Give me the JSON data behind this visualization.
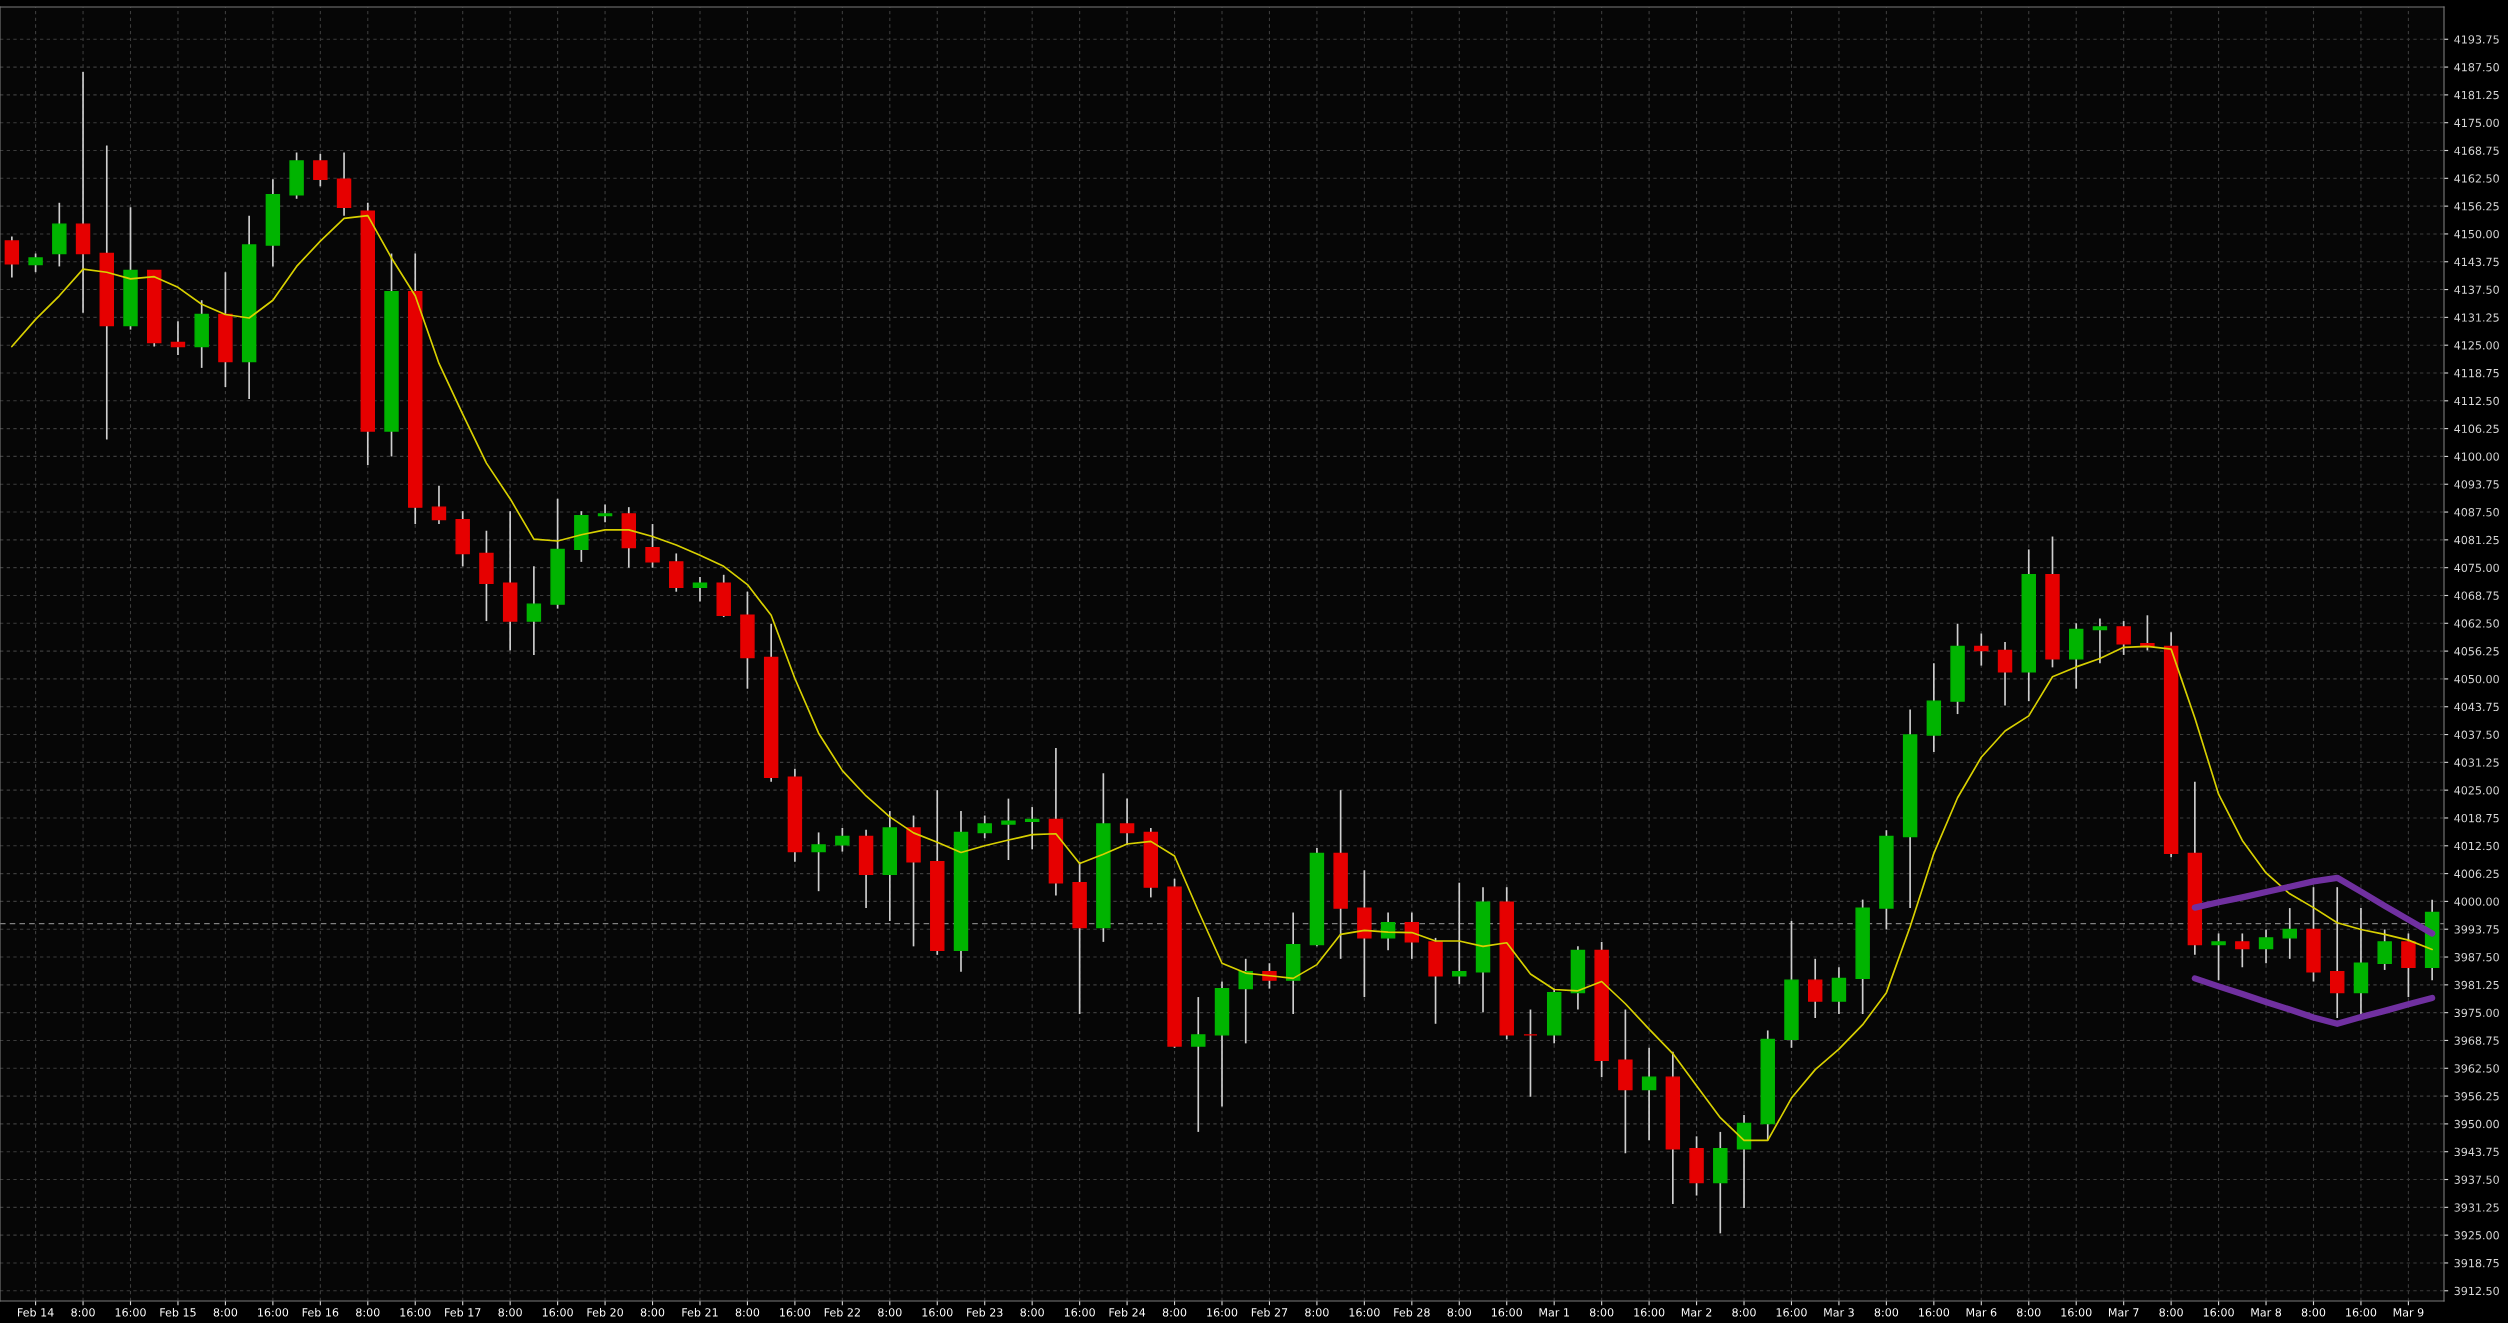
{
  "chart_data": {
    "type": "candlestick",
    "categories": [
      null,
      "Feb 14",
      null,
      "8:00",
      null,
      "16:00",
      null,
      "Feb 15",
      null,
      "8:00",
      null,
      "16:00",
      null,
      "Feb 16",
      null,
      "8:00",
      null,
      "16:00",
      null,
      "Feb 17",
      null,
      "8:00",
      null,
      "16:00",
      null,
      "Feb 20",
      null,
      "8:00",
      null,
      "Feb 21",
      null,
      "8:00",
      null,
      "16:00",
      null,
      "Feb 22",
      null,
      "8:00",
      null,
      "16:00",
      null,
      "Feb 23",
      null,
      "8:00",
      null,
      "16:00",
      null,
      "Feb 24",
      null,
      "8:00",
      null,
      "16:00",
      null,
      "Feb 27",
      null,
      "8:00",
      null,
      "16:00",
      null,
      "Feb 28",
      null,
      "8:00",
      null,
      "16:00",
      null,
      "Mar 1",
      null,
      "8:00",
      null,
      "16:00",
      null,
      "Mar 2",
      null,
      "8:00",
      null,
      "16:00",
      null,
      "Mar 3",
      null,
      "8:00",
      null,
      "16:00",
      null,
      "Mar 6",
      null,
      "8:00",
      null,
      "16:00",
      null,
      "Mar 7",
      null,
      "8:00",
      null,
      "16:00",
      null,
      "Mar 8",
      null,
      "8:00",
      null,
      "16:00",
      null,
      "Mar 9",
      null
    ],
    "ohlc": [
      [
        4148.4,
        4149.4,
        4140.2,
        4143.3
      ],
      [
        4143.1,
        4145.6,
        4141.4,
        4144.6
      ],
      [
        4145.6,
        4157.0,
        4142.7,
        4152.2
      ],
      [
        4152.2,
        4186.4,
        4132.3,
        4145.6
      ],
      [
        4145.6,
        4169.9,
        4103.8,
        4129.4
      ],
      [
        4129.4,
        4156.0,
        4128.5,
        4141.8
      ],
      [
        4141.8,
        4141.8,
        4124.7,
        4125.6
      ],
      [
        4125.6,
        4130.4,
        4122.8,
        4124.7
      ],
      [
        4124.7,
        4135.1,
        4119.9,
        4131.9
      ],
      [
        4131.9,
        4141.4,
        4115.6,
        4121.3
      ],
      [
        4121.3,
        4154.1,
        4112.9,
        4147.5
      ],
      [
        4147.5,
        4162.3,
        4142.7,
        4158.8
      ],
      [
        4158.8,
        4168.3,
        4157.9,
        4166.4
      ],
      [
        4166.4,
        4168.0,
        4160.7,
        4162.3
      ],
      [
        4162.3,
        4168.3,
        4154.1,
        4156.0
      ],
      [
        4155.1,
        4157.0,
        4098.1,
        4105.7
      ],
      [
        4105.7,
        4145.6,
        4100.0,
        4137.0
      ],
      [
        4137.0,
        4145.6,
        4084.8,
        4088.6
      ],
      [
        4088.6,
        4093.4,
        4084.8,
        4085.8
      ],
      [
        4085.8,
        4087.7,
        4075.3,
        4078.2
      ],
      [
        4078.2,
        4083.3,
        4063.0,
        4071.5
      ],
      [
        4071.5,
        4087.7,
        4056.4,
        4063.0
      ],
      [
        4063.0,
        4075.3,
        4055.4,
        4066.8
      ],
      [
        4066.8,
        4090.5,
        4065.8,
        4079.1
      ],
      [
        4079.1,
        4087.7,
        4076.3,
        4086.7
      ],
      [
        4086.7,
        4089.2,
        4085.2,
        4087.1
      ],
      [
        4087.1,
        4088.6,
        4075.0,
        4079.5
      ],
      [
        4079.5,
        4084.8,
        4075.0,
        4076.3
      ],
      [
        4076.3,
        4078.2,
        4069.6,
        4070.6
      ],
      [
        4070.6,
        4072.9,
        4067.4,
        4071.5
      ],
      [
        4071.5,
        4073.4,
        4063.9,
        4064.3
      ],
      [
        4064.3,
        4069.6,
        4047.8,
        4054.8
      ],
      [
        4054.8,
        4062.4,
        4026.9,
        4027.9
      ],
      [
        4027.9,
        4029.8,
        4008.9,
        4011.2
      ],
      [
        4011.2,
        4015.5,
        4002.3,
        4012.7
      ],
      [
        4012.7,
        4016.5,
        4011.2,
        4014.6
      ],
      [
        4014.6,
        4016.1,
        3998.5,
        4006.1
      ],
      [
        4006.1,
        4020.3,
        3995.6,
        4016.5
      ],
      [
        4016.5,
        4019.3,
        3989.9,
        4008.9
      ],
      [
        4008.9,
        4025.0,
        3988.0,
        3989.0
      ],
      [
        3989.0,
        4020.3,
        3984.2,
        4015.5
      ],
      [
        4015.5,
        4019.3,
        4014.2,
        4017.4
      ],
      [
        4017.4,
        4023.1,
        4009.3,
        4018.0
      ],
      [
        4018.0,
        4021.2,
        4011.7,
        4018.4
      ],
      [
        4018.4,
        4034.5,
        4001.3,
        4004.2
      ],
      [
        4004.2,
        4008.9,
        3974.7,
        3994.1
      ],
      [
        3994.1,
        4028.8,
        3990.9,
        4017.4
      ],
      [
        4017.4,
        4023.1,
        4012.7,
        4015.5
      ],
      [
        4015.5,
        4016.5,
        4000.9,
        4003.2
      ],
      [
        4003.2,
        4005.1,
        3967.1,
        3967.5
      ],
      [
        3967.5,
        3978.5,
        3948.2,
        3970.0
      ],
      [
        3970.0,
        3982.0,
        3953.9,
        3980.4
      ],
      [
        3980.4,
        3987.1,
        3968.1,
        3984.2
      ],
      [
        3984.2,
        3986.1,
        3980.4,
        3982.3
      ],
      [
        3982.3,
        3997.5,
        3974.7,
        3990.3
      ],
      [
        3990.3,
        4012.0,
        3989.9,
        4010.8
      ],
      [
        4010.8,
        4025.0,
        3987.1,
        3998.5
      ],
      [
        3998.5,
        4007.0,
        3978.5,
        3991.8
      ],
      [
        3991.8,
        3997.5,
        3989.0,
        3995.2
      ],
      [
        3995.2,
        3997.5,
        3987.1,
        3990.9
      ],
      [
        3990.9,
        3991.8,
        3972.5,
        3983.3
      ],
      [
        3983.3,
        4004.2,
        3981.4,
        3984.2
      ],
      [
        3984.2,
        4003.2,
        3975.1,
        3999.8
      ],
      [
        3999.8,
        4003.2,
        3969.0,
        3970.0
      ],
      [
        3970.0,
        3975.7,
        3956.1,
        3970.0
      ],
      [
        3970.0,
        3980.4,
        3968.1,
        3979.5
      ],
      [
        3979.5,
        3989.9,
        3975.7,
        3989.0
      ],
      [
        3989.0,
        3990.9,
        3960.5,
        3964.3
      ],
      [
        3964.3,
        3975.7,
        3943.4,
        3957.7
      ],
      [
        3957.7,
        3967.1,
        3946.3,
        3960.5
      ],
      [
        3960.5,
        3966.2,
        3932.0,
        3944.4
      ],
      [
        3944.4,
        3947.2,
        3933.9,
        3936.8
      ],
      [
        3936.8,
        3948.2,
        3925.4,
        3944.4
      ],
      [
        3944.4,
        3952.0,
        3931.1,
        3950.1
      ],
      [
        3950.1,
        3971.0,
        3946.3,
        3969.0
      ],
      [
        3969.0,
        3995.6,
        3967.1,
        3982.3
      ],
      [
        3982.3,
        3987.1,
        3973.8,
        3977.6
      ],
      [
        3977.6,
        3985.2,
        3974.7,
        3982.7
      ],
      [
        3982.7,
        4000.4,
        3974.7,
        3998.5
      ],
      [
        3998.5,
        4016.0,
        3993.7,
        4014.6
      ],
      [
        4014.6,
        4043.1,
        3998.5,
        4037.4
      ],
      [
        4037.4,
        4053.5,
        4033.6,
        4045.0
      ],
      [
        4045.0,
        4062.4,
        4042.1,
        4057.3
      ],
      [
        4057.3,
        4060.2,
        4053.0,
        4056.4
      ],
      [
        4056.4,
        4058.3,
        4044.0,
        4051.6
      ],
      [
        4051.6,
        4079.1,
        4045.0,
        4073.4
      ],
      [
        4073.4,
        4082.0,
        4052.6,
        4054.5
      ],
      [
        4054.5,
        4062.5,
        4047.8,
        4061.1
      ],
      [
        4061.1,
        4063.6,
        4053.5,
        4061.7
      ],
      [
        4061.7,
        4063.0,
        4055.4,
        4057.9
      ],
      [
        4057.9,
        4064.3,
        4056.4,
        4057.3
      ],
      [
        4057.3,
        4060.5,
        4009.9,
        4010.8
      ],
      [
        4010.8,
        4026.9,
        3988.0,
        3990.3
      ],
      [
        3990.3,
        3992.8,
        3982.3,
        3990.9
      ],
      [
        3990.9,
        3992.8,
        3985.2,
        3989.4
      ],
      [
        3989.4,
        3993.7,
        3986.1,
        3991.8
      ],
      [
        3991.8,
        3998.5,
        3987.1,
        3993.7
      ],
      [
        3993.7,
        4003.2,
        3982.0,
        3984.2
      ],
      [
        3984.2,
        4003.2,
        3973.8,
        3979.5
      ],
      [
        3979.5,
        3998.5,
        3974.7,
        3986.1
      ],
      [
        3986.1,
        3993.7,
        3984.6,
        3990.9
      ],
      [
        3990.9,
        3992.8,
        3978.5,
        3985.2
      ],
      [
        3985.2,
        4000.4,
        3982.3,
        3997.5
      ]
    ],
    "colors": [
      "#e60000",
      "#00b400",
      "#00b400",
      "#e60000",
      "#e60000",
      "#00b400",
      "#e60000",
      "#e60000",
      "#00b400",
      "#e60000",
      "#00b400",
      "#00b400",
      "#00b400",
      "#e60000",
      "#e60000",
      "#e60000",
      "#00b400",
      "#e60000",
      "#e60000",
      "#e60000",
      "#e60000",
      "#e60000",
      "#00b400",
      "#00b400",
      "#00b400",
      "#00b400",
      "#e60000",
      "#e60000",
      "#e60000",
      "#00b400",
      "#e60000",
      "#e60000",
      "#e60000",
      "#e60000",
      "#00b400",
      "#00b400",
      "#e60000",
      "#00b400",
      "#e60000",
      "#e60000",
      "#00b400",
      "#00b400",
      "#00b400",
      "#00b400",
      "#e60000",
      "#e60000",
      "#00b400",
      "#e60000",
      "#e60000",
      "#e60000",
      "#00b400",
      "#00b400",
      "#00b400",
      "#e60000",
      "#00b400",
      "#00b400",
      "#e60000",
      "#e60000",
      "#00b400",
      "#e60000",
      "#e60000",
      "#00b400",
      "#00b400",
      "#e60000",
      "#e60000",
      "#00b400",
      "#00b400",
      "#e60000",
      "#e60000",
      "#00b400",
      "#e60000",
      "#e60000",
      "#00b400",
      "#00b400",
      "#00b400",
      "#00b400",
      "#e60000",
      "#00b400",
      "#00b400",
      "#00b400",
      "#00b400",
      "#00b400",
      "#00b400",
      "#e60000",
      "#e60000",
      "#00b400",
      "#e60000",
      "#00b400",
      "#00b400",
      "#e60000",
      "#e60000",
      "#e60000",
      "#e60000",
      "#00b400",
      "#e60000",
      "#00b400",
      "#00b400",
      "#e60000",
      "#e60000",
      "#00b400",
      "#00b400",
      "#e60000",
      "#00b400"
    ],
    "series": [
      {
        "type": "line",
        "color": "#d8d000",
        "values": [
          4124.7,
          4130.8,
          4136.1,
          4142.1,
          4141.4,
          4139.9,
          4140.4,
          4138.0,
          4134.2,
          4131.9,
          4131.1,
          4135.1,
          4142.7,
          4148.4,
          4153.5,
          4154.1,
          4144.6,
          4136.1,
          4120.9,
          4109.5,
          4098.5,
          4090.5,
          4081.4,
          4081.0,
          4082.4,
          4083.5,
          4083.5,
          4082.0,
          4080.1,
          4077.8,
          4075.3,
          4071.2,
          4064.3,
          4050.1,
          4037.8,
          4029.4,
          4023.7,
          4019.0,
          4015.4,
          4013.3,
          4011.0,
          4012.5,
          4013.8,
          4015.0,
          4015.2,
          4008.5,
          4010.6,
          4012.9,
          4013.5,
          4010.2,
          3997.9,
          3986.1,
          3983.9,
          3983.3,
          3982.7,
          3985.8,
          3992.6,
          3993.5,
          3993.1,
          3993.0,
          3991.1,
          3991.1,
          3989.9,
          3990.7,
          3983.7,
          3980.2,
          3979.9,
          3982.0,
          3977.0,
          3971.3,
          3965.8,
          3958.6,
          3951.4,
          3946.3,
          3946.3,
          3955.8,
          3962.2,
          3966.8,
          3972.3,
          3979.5,
          3994.3,
          4010.8,
          4023.3,
          4032.4,
          4038.3,
          4041.7,
          4050.5,
          4052.7,
          4054.6,
          4057.1,
          4057.3,
          4056.7,
          4041.2,
          4024.1,
          4013.7,
          4006.4,
          4001.7,
          3998.6,
          3995.2,
          3993.7,
          3992.6,
          3991.3,
          3989.2
        ]
      },
      {
        "type": "line",
        "color": "#7030a0",
        "values": [
          null,
          null,
          null,
          null,
          null,
          null,
          null,
          null,
          null,
          null,
          null,
          null,
          null,
          null,
          null,
          null,
          null,
          null,
          null,
          null,
          null,
          null,
          null,
          null,
          null,
          null,
          null,
          null,
          null,
          null,
          null,
          null,
          null,
          null,
          null,
          null,
          null,
          null,
          null,
          null,
          null,
          null,
          null,
          null,
          null,
          null,
          null,
          null,
          null,
          null,
          null,
          null,
          null,
          null,
          null,
          null,
          null,
          null,
          null,
          null,
          null,
          null,
          null,
          null,
          null,
          null,
          null,
          null,
          null,
          null,
          null,
          null,
          null,
          null,
          null,
          null,
          null,
          null,
          null,
          null,
          null,
          null,
          null,
          null,
          null,
          null,
          null,
          null,
          null,
          null,
          null,
          null,
          3998.6,
          3999.8,
          4000.9,
          4002.1,
          4003.3,
          4004.5,
          4005.3,
          4002.2,
          3999.0,
          3995.9,
          3992.8
        ]
      },
      {
        "type": "line",
        "color": "#7030a0",
        "values": [
          null,
          null,
          null,
          null,
          null,
          null,
          null,
          null,
          null,
          null,
          null,
          null,
          null,
          null,
          null,
          null,
          null,
          null,
          null,
          null,
          null,
          null,
          null,
          null,
          null,
          null,
          null,
          null,
          null,
          null,
          null,
          null,
          null,
          null,
          null,
          null,
          null,
          null,
          null,
          null,
          null,
          null,
          null,
          null,
          null,
          null,
          null,
          null,
          null,
          null,
          null,
          null,
          null,
          null,
          null,
          null,
          null,
          null,
          null,
          null,
          null,
          null,
          null,
          null,
          null,
          null,
          null,
          null,
          null,
          null,
          null,
          null,
          null,
          null,
          null,
          null,
          null,
          null,
          null,
          null,
          null,
          null,
          null,
          null,
          null,
          null,
          null,
          null,
          null,
          null,
          null,
          null,
          3982.7,
          3980.9,
          3979.2,
          3977.4,
          3975.7,
          3973.9,
          3972.5,
          3974.0,
          3975.4,
          3976.9,
          3978.3
        ]
      }
    ],
    "ylim": [
      3910.2,
      4201.0
    ],
    "yticks": [
      {
        "value": 3912.5,
        "label": "3912.50"
      },
      {
        "value": 3918.75,
        "label": "3918.75"
      },
      {
        "value": 3925,
        "label": "3925.00"
      },
      {
        "value": 3931.25,
        "label": "3931.25"
      },
      {
        "value": 3937.5,
        "label": "3937.50"
      },
      {
        "value": 3943.75,
        "label": "3943.75"
      },
      {
        "value": 3950,
        "label": "3950.00"
      },
      {
        "value": 3956.25,
        "label": "3956.25"
      },
      {
        "value": 3962.5,
        "label": "3962.50"
      },
      {
        "value": 3968.75,
        "label": "3968.75"
      },
      {
        "value": 3975,
        "label": "3975.00"
      },
      {
        "value": 3981.25,
        "label": "3981.25"
      },
      {
        "value": 3987.5,
        "label": "3987.50"
      },
      {
        "value": 3993.75,
        "label": "3993.75"
      },
      {
        "value": 4000,
        "label": "4000.00"
      },
      {
        "value": 4006.25,
        "label": "4006.25"
      },
      {
        "value": 4012.5,
        "label": "4012.50"
      },
      {
        "value": 4018.75,
        "label": "4018.75"
      },
      {
        "value": 4025,
        "label": "4025.00"
      },
      {
        "value": 4031.25,
        "label": "4031.25"
      },
      {
        "value": 4037.5,
        "label": "4037.50"
      },
      {
        "value": 4043.75,
        "label": "4043.75"
      },
      {
        "value": 4050,
        "label": "4050.00"
      },
      {
        "value": 4056.25,
        "label": "4056.25"
      },
      {
        "value": 4062.5,
        "label": "4062.50"
      },
      {
        "value": 4068.75,
        "label": "4068.75"
      },
      {
        "value": 4075,
        "label": "4075.00"
      },
      {
        "value": 4081.25,
        "label": "4081.25"
      },
      {
        "value": 4087.5,
        "label": "4087.50"
      },
      {
        "value": 4093.75,
        "label": "4093.75"
      },
      {
        "value": 4100,
        "label": "4100.00"
      },
      {
        "value": 4106.25,
        "label": "4106.25"
      },
      {
        "value": 4112.5,
        "label": "4112.50"
      },
      {
        "value": 4118.75,
        "label": "4118.75"
      },
      {
        "value": 4125,
        "label": "4125.00"
      },
      {
        "value": 4131.25,
        "label": "4131.25"
      },
      {
        "value": 4137.5,
        "label": "4137.50"
      },
      {
        "value": 4143.75,
        "label": "4143.75"
      },
      {
        "value": 4150,
        "label": "4150.00"
      },
      {
        "value": 4156.25,
        "label": "4156.25"
      },
      {
        "value": 4162.5,
        "label": "4162.50"
      },
      {
        "value": 4168.75,
        "label": "4168.75"
      },
      {
        "value": 4175,
        "label": "4175.00"
      },
      {
        "value": 4181.25,
        "label": "4181.25"
      },
      {
        "value": 4187.5,
        "label": "4187.50"
      },
      {
        "value": 4193.75,
        "label": "4193.75"
      }
    ],
    "ref_lines": [
      {
        "axis": "y",
        "value": 3995,
        "color": "#808080",
        "line_style": "dashed"
      }
    ],
    "grid": true
  }
}
